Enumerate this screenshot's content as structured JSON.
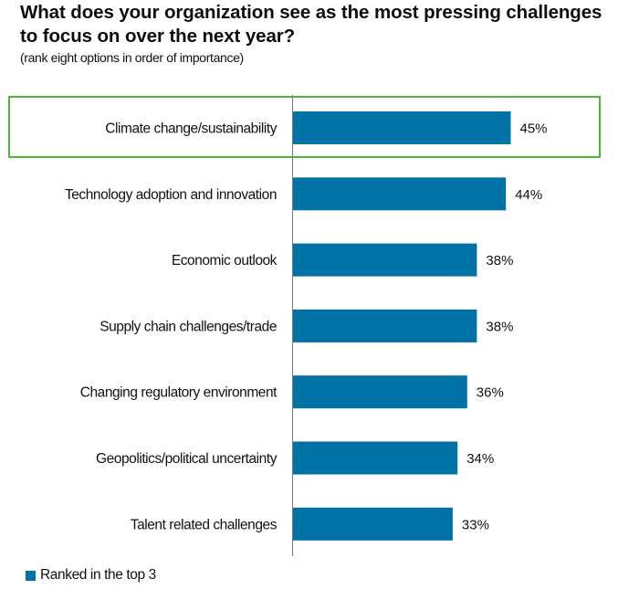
{
  "chart_data": {
    "type": "bar",
    "orientation": "horizontal",
    "title": "What does your organization see as the most pressing challenges to focus on over the next year?",
    "subtitle": "(rank eight options in order of importance)",
    "categories": [
      "Climate change/sustainability",
      "Technology adoption and innovation",
      "Economic outlook",
      "Supply chain challenges/trade",
      "Changing regulatory environment",
      "Geopolitics/political uncertainty",
      "Talent related challenges"
    ],
    "series": [
      {
        "name": "Ranked in the top 3",
        "values": [
          45,
          44,
          38,
          38,
          36,
          34,
          33
        ],
        "color": "#0072A6"
      }
    ],
    "value_labels": [
      "45%",
      "44%",
      "38%",
      "38%",
      "36%",
      "34%",
      "33%"
    ],
    "unit": "%",
    "xlabel": "",
    "ylabel": "",
    "xlim": [
      0,
      60
    ],
    "grid": false,
    "legend_position": "bottom-left",
    "highlighted_category": "Climate change/sustainability",
    "highlight_color": "#4CB83A",
    "axis_color": "#7a7a7a"
  }
}
